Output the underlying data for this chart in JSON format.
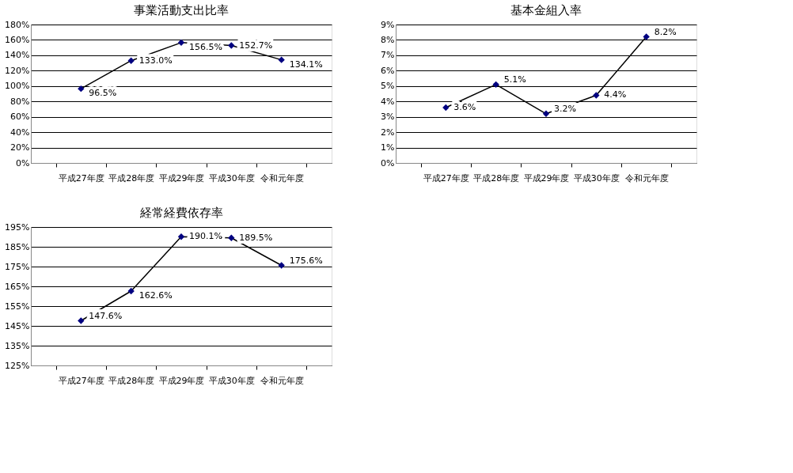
{
  "chart_data": [
    {
      "type": "line",
      "title": "事業活動支出比率",
      "categories": [
        "平成27年度",
        "平成28年度",
        "平成29年度",
        "平成30年度",
        "令和元年度"
      ],
      "series": [
        {
          "color": "#000080",
          "values": [
            96.5,
            133.0,
            156.5,
            152.7,
            134.1
          ]
        }
      ],
      "value_labels": [
        "96.5%",
        "133.0%",
        "156.5%",
        "152.7%",
        "134.1%"
      ],
      "ylim": [
        0,
        180
      ],
      "yticks": [
        {
          "value": 0,
          "label": "0%"
        },
        {
          "value": 20,
          "label": "20%"
        },
        {
          "value": 40,
          "label": "40%"
        },
        {
          "value": 60,
          "label": "60%"
        },
        {
          "value": 80,
          "label": "80%"
        },
        {
          "value": 100,
          "label": "100%"
        },
        {
          "value": 120,
          "label": "120%"
        },
        {
          "value": 140,
          "label": "140%"
        },
        {
          "value": 160,
          "label": "160%"
        },
        {
          "value": 180,
          "label": "180%"
        }
      ],
      "grid": "y",
      "marker": "diamond",
      "line_style": "solid",
      "legend": false
    },
    {
      "type": "line",
      "title": "基本金組入率",
      "categories": [
        "平成27年度",
        "平成28年度",
        "平成29年度",
        "平成30年度",
        "令和元年度"
      ],
      "series": [
        {
          "color": "#000080",
          "values": [
            3.6,
            5.1,
            3.2,
            4.4,
            8.2
          ]
        }
      ],
      "value_labels": [
        "3.6%",
        "5.1%",
        "3.2%",
        "4.4%",
        "8.2%"
      ],
      "ylim": [
        0,
        9
      ],
      "yticks": [
        {
          "value": 0,
          "label": "0%"
        },
        {
          "value": 1,
          "label": "1%"
        },
        {
          "value": 2,
          "label": "2%"
        },
        {
          "value": 3,
          "label": "3%"
        },
        {
          "value": 4,
          "label": "4%"
        },
        {
          "value": 5,
          "label": "5%"
        },
        {
          "value": 6,
          "label": "6%"
        },
        {
          "value": 7,
          "label": "7%"
        },
        {
          "value": 8,
          "label": "8%"
        },
        {
          "value": 9,
          "label": "9%"
        }
      ],
      "grid": "y",
      "marker": "diamond",
      "line_style": "solid",
      "legend": false
    },
    {
      "type": "line",
      "title": "経常経費依存率",
      "categories": [
        "平成27年度",
        "平成28年度",
        "平成29年度",
        "平成30年度",
        "令和元年度"
      ],
      "series": [
        {
          "color": "#000080",
          "values": [
            147.6,
            162.6,
            190.1,
            189.5,
            175.6
          ]
        }
      ],
      "value_labels": [
        "147.6%",
        "162.6%",
        "190.1%",
        "189.5%",
        "175.6%"
      ],
      "ylim": [
        125,
        195
      ],
      "yticks": [
        {
          "value": 125,
          "label": "125%"
        },
        {
          "value": 135,
          "label": "135%"
        },
        {
          "value": 145,
          "label": "145%"
        },
        {
          "value": 155,
          "label": "155%"
        },
        {
          "value": 165,
          "label": "165%"
        },
        {
          "value": 175,
          "label": "175%"
        },
        {
          "value": 185,
          "label": "185%"
        },
        {
          "value": 195,
          "label": "195%"
        }
      ],
      "grid": "y",
      "marker": "diamond",
      "line_style": "solid",
      "legend": false
    }
  ]
}
